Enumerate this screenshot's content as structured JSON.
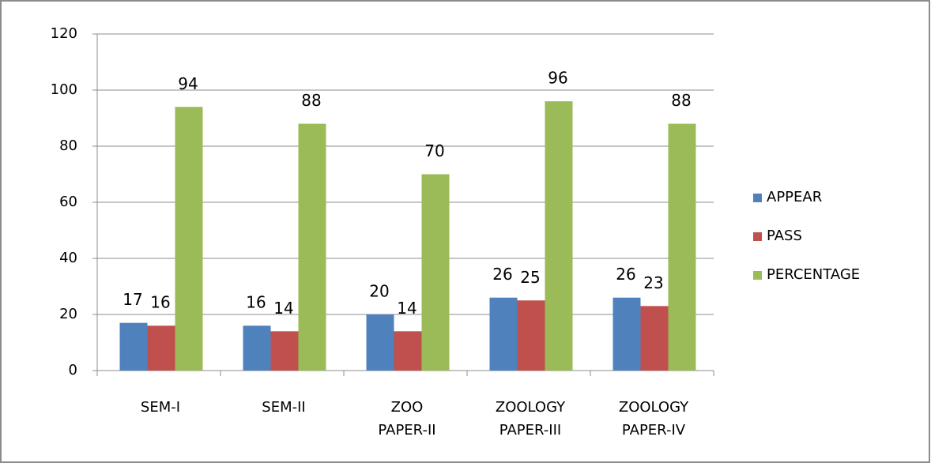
{
  "chart_data": {
    "type": "bar",
    "categories": [
      "SEM-I",
      "SEM-II",
      "ZOO PAPER-II",
      "ZOOLOGY PAPER-III",
      "ZOOLOGY PAPER-IV"
    ],
    "series": [
      {
        "name": "APPEAR",
        "color": "#4f81bd",
        "values": [
          17,
          16,
          20,
          26,
          26
        ]
      },
      {
        "name": "PASS",
        "color": "#c0504d",
        "values": [
          16,
          14,
          14,
          25,
          23
        ]
      },
      {
        "name": "PERCENTAGE",
        "color": "#9bbb59",
        "values": [
          94,
          88,
          70,
          96,
          88
        ]
      }
    ],
    "ylim": [
      0,
      120
    ],
    "yticks": [
      0,
      20,
      40,
      60,
      80,
      100,
      120
    ],
    "grid": true,
    "legend": "right"
  }
}
